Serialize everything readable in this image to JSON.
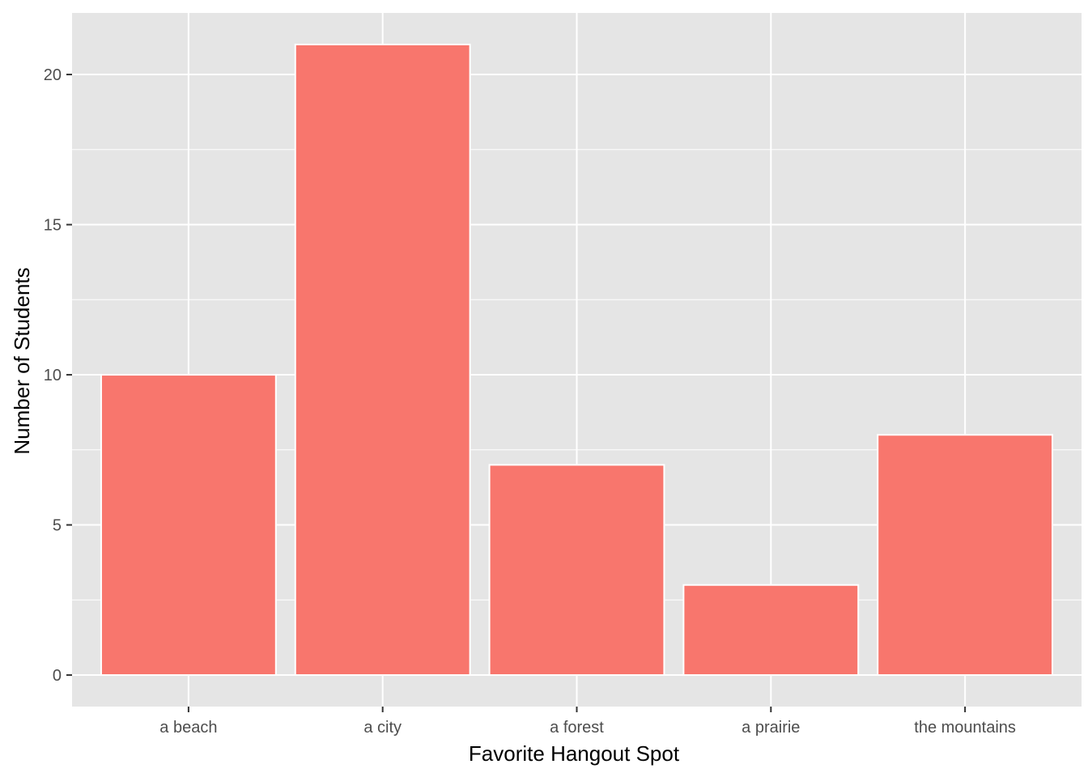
{
  "chart_data": {
    "type": "bar",
    "categories": [
      "a beach",
      "a city",
      "a forest",
      "a prairie",
      "the mountains"
    ],
    "values": [
      10,
      21,
      7,
      3,
      8
    ],
    "title": "",
    "xlabel": "Favorite Hangout Spot",
    "ylabel": "Number of Students",
    "ylim": [
      -1.05,
      22.05
    ],
    "y_ticks": [
      0,
      5,
      10,
      15,
      20
    ],
    "y_minor_ticks": [
      2.5,
      7.5,
      12.5,
      17.5
    ],
    "grid": true,
    "legend": "none",
    "colors": {
      "bar_fill": "#F8766D",
      "bar_outline": "#ffffff",
      "panel_background": "#E5E5E5",
      "grid": "#ffffff"
    }
  }
}
